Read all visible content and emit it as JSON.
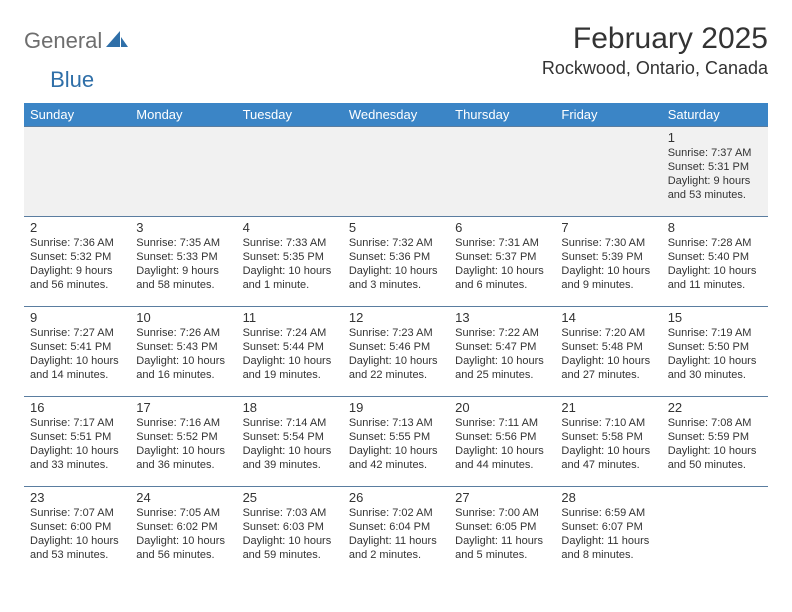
{
  "logo": {
    "text1": "General",
    "text2": "Blue"
  },
  "header": {
    "title": "February 2025",
    "location": "Rockwood, Ontario, Canada"
  },
  "colors": {
    "header_bg": "#3b85c6",
    "header_text": "#ffffff",
    "row_divider": "#5a7da0",
    "week1_bg": "#f1f1f1",
    "text": "#333333",
    "logo_gray": "#6e6e6e",
    "logo_blue": "#2f6fa8"
  },
  "day_headers": [
    "Sunday",
    "Monday",
    "Tuesday",
    "Wednesday",
    "Thursday",
    "Friday",
    "Saturday"
  ],
  "weeks": [
    [
      null,
      null,
      null,
      null,
      null,
      null,
      {
        "n": "1",
        "sunrise": "Sunrise: 7:37 AM",
        "sunset": "Sunset: 5:31 PM",
        "daylight": "Daylight: 9 hours and 53 minutes."
      }
    ],
    [
      {
        "n": "2",
        "sunrise": "Sunrise: 7:36 AM",
        "sunset": "Sunset: 5:32 PM",
        "daylight": "Daylight: 9 hours and 56 minutes."
      },
      {
        "n": "3",
        "sunrise": "Sunrise: 7:35 AM",
        "sunset": "Sunset: 5:33 PM",
        "daylight": "Daylight: 9 hours and 58 minutes."
      },
      {
        "n": "4",
        "sunrise": "Sunrise: 7:33 AM",
        "sunset": "Sunset: 5:35 PM",
        "daylight": "Daylight: 10 hours and 1 minute."
      },
      {
        "n": "5",
        "sunrise": "Sunrise: 7:32 AM",
        "sunset": "Sunset: 5:36 PM",
        "daylight": "Daylight: 10 hours and 3 minutes."
      },
      {
        "n": "6",
        "sunrise": "Sunrise: 7:31 AM",
        "sunset": "Sunset: 5:37 PM",
        "daylight": "Daylight: 10 hours and 6 minutes."
      },
      {
        "n": "7",
        "sunrise": "Sunrise: 7:30 AM",
        "sunset": "Sunset: 5:39 PM",
        "daylight": "Daylight: 10 hours and 9 minutes."
      },
      {
        "n": "8",
        "sunrise": "Sunrise: 7:28 AM",
        "sunset": "Sunset: 5:40 PM",
        "daylight": "Daylight: 10 hours and 11 minutes."
      }
    ],
    [
      {
        "n": "9",
        "sunrise": "Sunrise: 7:27 AM",
        "sunset": "Sunset: 5:41 PM",
        "daylight": "Daylight: 10 hours and 14 minutes."
      },
      {
        "n": "10",
        "sunrise": "Sunrise: 7:26 AM",
        "sunset": "Sunset: 5:43 PM",
        "daylight": "Daylight: 10 hours and 16 minutes."
      },
      {
        "n": "11",
        "sunrise": "Sunrise: 7:24 AM",
        "sunset": "Sunset: 5:44 PM",
        "daylight": "Daylight: 10 hours and 19 minutes."
      },
      {
        "n": "12",
        "sunrise": "Sunrise: 7:23 AM",
        "sunset": "Sunset: 5:46 PM",
        "daylight": "Daylight: 10 hours and 22 minutes."
      },
      {
        "n": "13",
        "sunrise": "Sunrise: 7:22 AM",
        "sunset": "Sunset: 5:47 PM",
        "daylight": "Daylight: 10 hours and 25 minutes."
      },
      {
        "n": "14",
        "sunrise": "Sunrise: 7:20 AM",
        "sunset": "Sunset: 5:48 PM",
        "daylight": "Daylight: 10 hours and 27 minutes."
      },
      {
        "n": "15",
        "sunrise": "Sunrise: 7:19 AM",
        "sunset": "Sunset: 5:50 PM",
        "daylight": "Daylight: 10 hours and 30 minutes."
      }
    ],
    [
      {
        "n": "16",
        "sunrise": "Sunrise: 7:17 AM",
        "sunset": "Sunset: 5:51 PM",
        "daylight": "Daylight: 10 hours and 33 minutes."
      },
      {
        "n": "17",
        "sunrise": "Sunrise: 7:16 AM",
        "sunset": "Sunset: 5:52 PM",
        "daylight": "Daylight: 10 hours and 36 minutes."
      },
      {
        "n": "18",
        "sunrise": "Sunrise: 7:14 AM",
        "sunset": "Sunset: 5:54 PM",
        "daylight": "Daylight: 10 hours and 39 minutes."
      },
      {
        "n": "19",
        "sunrise": "Sunrise: 7:13 AM",
        "sunset": "Sunset: 5:55 PM",
        "daylight": "Daylight: 10 hours and 42 minutes."
      },
      {
        "n": "20",
        "sunrise": "Sunrise: 7:11 AM",
        "sunset": "Sunset: 5:56 PM",
        "daylight": "Daylight: 10 hours and 44 minutes."
      },
      {
        "n": "21",
        "sunrise": "Sunrise: 7:10 AM",
        "sunset": "Sunset: 5:58 PM",
        "daylight": "Daylight: 10 hours and 47 minutes."
      },
      {
        "n": "22",
        "sunrise": "Sunrise: 7:08 AM",
        "sunset": "Sunset: 5:59 PM",
        "daylight": "Daylight: 10 hours and 50 minutes."
      }
    ],
    [
      {
        "n": "23",
        "sunrise": "Sunrise: 7:07 AM",
        "sunset": "Sunset: 6:00 PM",
        "daylight": "Daylight: 10 hours and 53 minutes."
      },
      {
        "n": "24",
        "sunrise": "Sunrise: 7:05 AM",
        "sunset": "Sunset: 6:02 PM",
        "daylight": "Daylight: 10 hours and 56 minutes."
      },
      {
        "n": "25",
        "sunrise": "Sunrise: 7:03 AM",
        "sunset": "Sunset: 6:03 PM",
        "daylight": "Daylight: 10 hours and 59 minutes."
      },
      {
        "n": "26",
        "sunrise": "Sunrise: 7:02 AM",
        "sunset": "Sunset: 6:04 PM",
        "daylight": "Daylight: 11 hours and 2 minutes."
      },
      {
        "n": "27",
        "sunrise": "Sunrise: 7:00 AM",
        "sunset": "Sunset: 6:05 PM",
        "daylight": "Daylight: 11 hours and 5 minutes."
      },
      {
        "n": "28",
        "sunrise": "Sunrise: 6:59 AM",
        "sunset": "Sunset: 6:07 PM",
        "daylight": "Daylight: 11 hours and 8 minutes."
      },
      null
    ]
  ]
}
